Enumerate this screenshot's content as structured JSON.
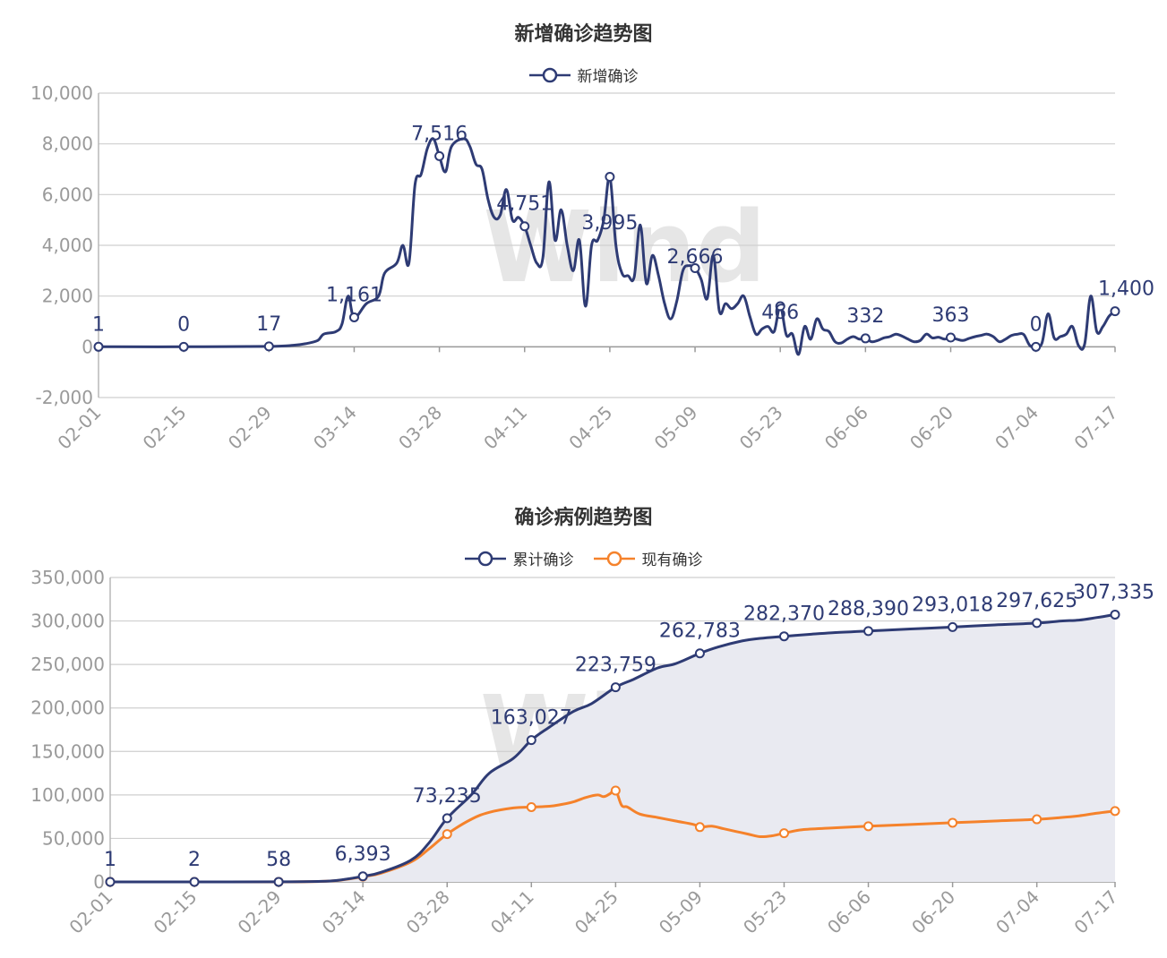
{
  "chart_data": [
    {
      "type": "line",
      "title": "新增确诊趋势图",
      "legend_position": "top-center",
      "grid": true,
      "watermark": "Wind",
      "ylim": [
        -2000,
        10000
      ],
      "ytick_values": [
        -2000,
        0,
        2000,
        4000,
        6000,
        8000,
        10000
      ],
      "ytick_labels": [
        "-2,000",
        "0",
        "2,000",
        "4,000",
        "6,000",
        "8,000",
        "10,000"
      ],
      "x_start": "02-01",
      "xtick_labels": [
        "02-01",
        "02-15",
        "02-29",
        "03-14",
        "03-28",
        "04-11",
        "04-25",
        "05-09",
        "05-23",
        "06-06",
        "06-20",
        "07-04",
        "07-17"
      ],
      "xtick_days": [
        0,
        14,
        28,
        42,
        56,
        70,
        84,
        98,
        112,
        126,
        140,
        154,
        167
      ],
      "series": [
        {
          "name": "新增确诊",
          "color": "#2e3b74",
          "points": [
            [
              0,
              1
            ],
            [
              14,
              0
            ],
            [
              28,
              17
            ],
            [
              32,
              60
            ],
            [
              34,
              120
            ],
            [
              36,
              250
            ],
            [
              37,
              500
            ],
            [
              39,
              600
            ],
            [
              40,
              900
            ],
            [
              41,
              2000
            ],
            [
              42,
              1161
            ],
            [
              44,
              1700
            ],
            [
              46,
              2000
            ],
            [
              47,
              2900
            ],
            [
              49,
              3300
            ],
            [
              50,
              4000
            ],
            [
              51,
              3300
            ],
            [
              52,
              6400
            ],
            [
              53,
              6800
            ],
            [
              54,
              7800
            ],
            [
              55,
              8200
            ],
            [
              56,
              7516
            ],
            [
              57,
              6900
            ],
            [
              58,
              7900
            ],
            [
              60,
              8200
            ],
            [
              61,
              7900
            ],
            [
              62,
              7200
            ],
            [
              63,
              7000
            ],
            [
              64,
              5800
            ],
            [
              65,
              5100
            ],
            [
              66,
              5200
            ],
            [
              67,
              6200
            ],
            [
              68,
              5000
            ],
            [
              69,
              5100
            ],
            [
              70,
              4751
            ],
            [
              71,
              4000
            ],
            [
              72,
              3300
            ],
            [
              73,
              3500
            ],
            [
              74,
              6500
            ],
            [
              75,
              4200
            ],
            [
              76,
              5400
            ],
            [
              77,
              4000
            ],
            [
              78,
              3000
            ],
            [
              79,
              4200
            ],
            [
              80,
              1600
            ],
            [
              81,
              4000
            ],
            [
              82,
              4200
            ],
            [
              83,
              5000
            ],
            [
              84,
              6700
            ],
            [
              85,
              3995
            ],
            [
              86,
              2900
            ],
            [
              87,
              2800
            ],
            [
              88,
              2750
            ],
            [
              89,
              4800
            ],
            [
              90,
              2500
            ],
            [
              91,
              3600
            ],
            [
              92,
              2800
            ],
            [
              93,
              1700
            ],
            [
              94,
              1100
            ],
            [
              95,
              1800
            ],
            [
              96,
              3000
            ],
            [
              97,
              3200
            ],
            [
              98,
              3100
            ],
            [
              99,
              2666
            ],
            [
              100,
              1900
            ],
            [
              101,
              3600
            ],
            [
              102,
              1400
            ],
            [
              103,
              1700
            ],
            [
              104,
              1500
            ],
            [
              105,
              1700
            ],
            [
              106,
              2000
            ],
            [
              107,
              1200
            ],
            [
              108,
              500
            ],
            [
              109,
              700
            ],
            [
              110,
              800
            ],
            [
              111,
              600
            ],
            [
              112,
              1600
            ],
            [
              113,
              466
            ],
            [
              114,
              500
            ],
            [
              115,
              -300
            ],
            [
              116,
              800
            ],
            [
              117,
              300
            ],
            [
              118,
              1100
            ],
            [
              119,
              700
            ],
            [
              120,
              600
            ],
            [
              121,
              200
            ],
            [
              122,
              150
            ],
            [
              123,
              300
            ],
            [
              124,
              400
            ],
            [
              125,
              300
            ],
            [
              126,
              332
            ],
            [
              127,
              200
            ],
            [
              128,
              250
            ],
            [
              129,
              350
            ],
            [
              130,
              400
            ],
            [
              131,
              500
            ],
            [
              132,
              420
            ],
            [
              133,
              300
            ],
            [
              134,
              200
            ],
            [
              135,
              250
            ],
            [
              136,
              500
            ],
            [
              137,
              350
            ],
            [
              138,
              380
            ],
            [
              139,
              300
            ],
            [
              140,
              363
            ],
            [
              141,
              300
            ],
            [
              142,
              250
            ],
            [
              143,
              330
            ],
            [
              144,
              400
            ],
            [
              145,
              450
            ],
            [
              146,
              500
            ],
            [
              147,
              400
            ],
            [
              148,
              200
            ],
            [
              149,
              300
            ],
            [
              150,
              450
            ],
            [
              151,
              500
            ],
            [
              152,
              480
            ],
            [
              153,
              50
            ],
            [
              154,
              0
            ],
            [
              155,
              150
            ],
            [
              156,
              1300
            ],
            [
              157,
              350
            ],
            [
              158,
              400
            ],
            [
              159,
              500
            ],
            [
              160,
              800
            ],
            [
              161,
              50
            ],
            [
              162,
              100
            ],
            [
              163,
              2000
            ],
            [
              164,
              600
            ],
            [
              165,
              800
            ],
            [
              166,
              1200
            ],
            [
              167,
              1400
            ]
          ],
          "labeled_points": [
            {
              "day": 0,
              "value": 1,
              "label": "1"
            },
            {
              "day": 14,
              "value": 0,
              "label": "0"
            },
            {
              "day": 28,
              "value": 17,
              "label": "17"
            },
            {
              "day": 42,
              "value": 1161,
              "label": "1,161"
            },
            {
              "day": 56,
              "value": 7516,
              "label": "7,516"
            },
            {
              "day": 70,
              "value": 4751,
              "label": "4,751"
            },
            {
              "day": 84,
              "value": 3995,
              "label": "3,995"
            },
            {
              "day": 98,
              "value": 2666,
              "label": "2,666"
            },
            {
              "day": 112,
              "value": 466,
              "label": "466"
            },
            {
              "day": 126,
              "value": 332,
              "label": "332"
            },
            {
              "day": 140,
              "value": 363,
              "label": "363"
            },
            {
              "day": 154,
              "value": 0,
              "label": "0"
            },
            {
              "day": 167,
              "value": 1400,
              "label": "1,400"
            }
          ]
        }
      ]
    },
    {
      "type": "area",
      "title": "确诊病例趋势图",
      "legend_position": "top-center",
      "grid": true,
      "watermark": "Wind",
      "ylim": [
        0,
        350000
      ],
      "ytick_values": [
        0,
        50000,
        100000,
        150000,
        200000,
        250000,
        300000,
        350000
      ],
      "ytick_labels": [
        "0",
        "50,000",
        "100,000",
        "150,000",
        "200,000",
        "250,000",
        "300,000",
        "350,000"
      ],
      "x_start": "02-01",
      "xtick_labels": [
        "02-01",
        "02-15",
        "02-29",
        "03-14",
        "03-28",
        "04-11",
        "04-25",
        "05-09",
        "05-23",
        "06-06",
        "06-20",
        "07-04",
        "07-17"
      ],
      "xtick_days": [
        0,
        14,
        28,
        42,
        56,
        70,
        84,
        98,
        112,
        126,
        140,
        154,
        167
      ],
      "series": [
        {
          "name": "累计确诊",
          "color": "#2e3b74",
          "filled": true,
          "fill_color": "#e9eaf1",
          "points": [
            [
              0,
              1
            ],
            [
              14,
              2
            ],
            [
              28,
              58
            ],
            [
              35,
              600
            ],
            [
              38,
              2000
            ],
            [
              42,
              6393
            ],
            [
              45,
              11000
            ],
            [
              50,
              25000
            ],
            [
              53,
              45000
            ],
            [
              56,
              73235
            ],
            [
              60,
              100000
            ],
            [
              63,
              125000
            ],
            [
              67,
              142000
            ],
            [
              70,
              163027
            ],
            [
              73,
              178000
            ],
            [
              77,
              196000
            ],
            [
              80,
              205000
            ],
            [
              84,
              223759
            ],
            [
              87,
              233000
            ],
            [
              91,
              246000
            ],
            [
              94,
              251000
            ],
            [
              98,
              262783
            ],
            [
              101,
              270000
            ],
            [
              105,
              277000
            ],
            [
              108,
              280000
            ],
            [
              112,
              282370
            ],
            [
              116,
              284500
            ],
            [
              120,
              286500
            ],
            [
              126,
              288390
            ],
            [
              133,
              290800
            ],
            [
              140,
              293018
            ],
            [
              147,
              295400
            ],
            [
              154,
              297625
            ],
            [
              158,
              300000
            ],
            [
              161,
              301000
            ],
            [
              164,
              304000
            ],
            [
              167,
              307335
            ]
          ],
          "labeled_points": [
            {
              "day": 0,
              "value": 1,
              "label": "1"
            },
            {
              "day": 14,
              "value": 2,
              "label": "2"
            },
            {
              "day": 28,
              "value": 58,
              "label": "58"
            },
            {
              "day": 42,
              "value": 6393,
              "label": "6,393"
            },
            {
              "day": 56,
              "value": 73235,
              "label": "73,235"
            },
            {
              "day": 70,
              "value": 163027,
              "label": "163,027"
            },
            {
              "day": 84,
              "value": 223759,
              "label": "223,759"
            },
            {
              "day": 98,
              "value": 262783,
              "label": "262,783"
            },
            {
              "day": 112,
              "value": 282370,
              "label": "282,370"
            },
            {
              "day": 126,
              "value": 288390,
              "label": "288,390"
            },
            {
              "day": 140,
              "value": 293018,
              "label": "293,018"
            },
            {
              "day": 154,
              "value": 297625,
              "label": "297,625"
            },
            {
              "day": 167,
              "value": 307335,
              "label": "307,335"
            }
          ]
        },
        {
          "name": "现有确诊",
          "color": "#f5822b",
          "filled": false,
          "points": [
            [
              0,
              1
            ],
            [
              14,
              2
            ],
            [
              28,
              50
            ],
            [
              35,
              550
            ],
            [
              38,
              1800
            ],
            [
              42,
              6000
            ],
            [
              45,
              10000
            ],
            [
              50,
              23000
            ],
            [
              53,
              38000
            ],
            [
              56,
              55000
            ],
            [
              60,
              72000
            ],
            [
              63,
              80000
            ],
            [
              67,
              85000
            ],
            [
              70,
              86000
            ],
            [
              73,
              87000
            ],
            [
              75,
              89000
            ],
            [
              77,
              92000
            ],
            [
              79,
              97000
            ],
            [
              81,
              100000
            ],
            [
              82,
              98000
            ],
            [
              83,
              101000
            ],
            [
              84,
              105000
            ],
            [
              85,
              88000
            ],
            [
              86,
              86000
            ],
            [
              88,
              78000
            ],
            [
              91,
              74000
            ],
            [
              94,
              70000
            ],
            [
              97,
              66000
            ],
            [
              98,
              63000
            ],
            [
              100,
              64000
            ],
            [
              102,
              61000
            ],
            [
              104,
              58000
            ],
            [
              106,
              55000
            ],
            [
              108,
              52000
            ],
            [
              110,
              53000
            ],
            [
              112,
              56000
            ],
            [
              115,
              60000
            ],
            [
              120,
              62000
            ],
            [
              126,
              64000
            ],
            [
              133,
              66000
            ],
            [
              140,
              68000
            ],
            [
              147,
              70000
            ],
            [
              154,
              72000
            ],
            [
              158,
              74000
            ],
            [
              161,
              76000
            ],
            [
              164,
              79000
            ],
            [
              167,
              81500
            ]
          ]
        }
      ]
    }
  ]
}
